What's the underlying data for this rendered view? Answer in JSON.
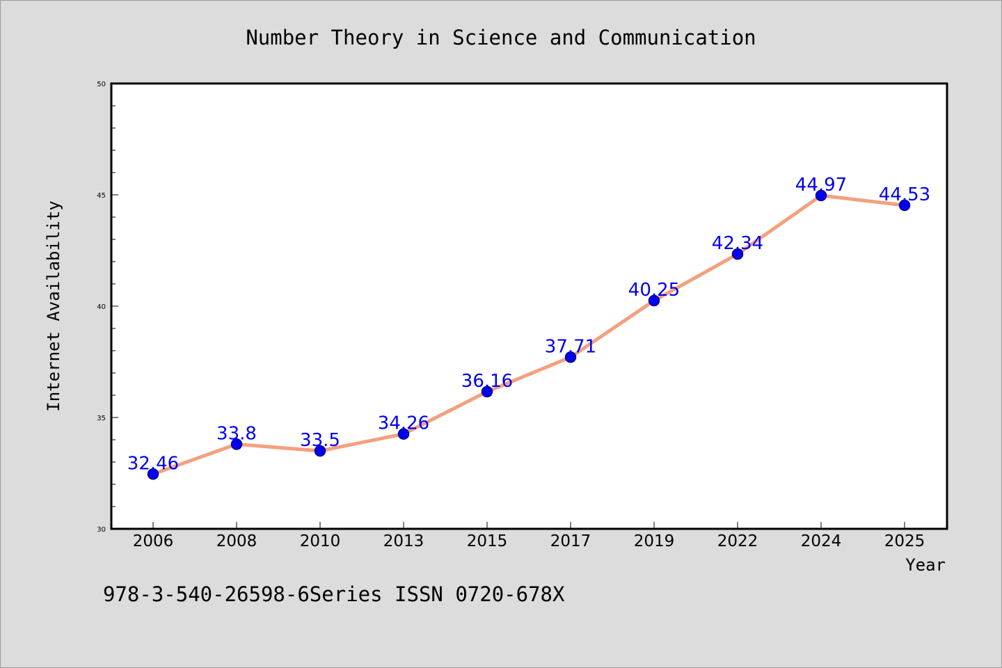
{
  "chart_data": {
    "type": "line",
    "title": "Number Theory in Science and Communication",
    "xlabel": "Year",
    "ylabel": "Internet Availability",
    "categories": [
      "2006",
      "2008",
      "2010",
      "2013",
      "2015",
      "2017",
      "2019",
      "2022",
      "2024",
      "2025"
    ],
    "series": [
      {
        "values": [
          32.46,
          33.8,
          33.5,
          34.26,
          36.16,
          37.71,
          40.25,
          42.34,
          44.97,
          44.53
        ]
      }
    ],
    "data_labels": [
      "32.46",
      "33.8",
      "33.5",
      "34.26",
      "36.16",
      "37.71",
      "40.25",
      "42.34",
      "44.97",
      "44.53"
    ],
    "ylim": [
      30,
      50
    ],
    "yticks": [
      "30",
      "35",
      "40",
      "45",
      "50"
    ],
    "grid": false,
    "legend": "none",
    "colors": {
      "line": "#f4a07e",
      "marker_fill": "#0000ee",
      "marker_stroke": "#00008b",
      "data_label": "#0000ee",
      "background": "#dcdcdc",
      "plot_background": "#ffffff"
    }
  },
  "footer": {
    "text": "978-3-540-26598-6Series ISSN 0720-678X"
  }
}
